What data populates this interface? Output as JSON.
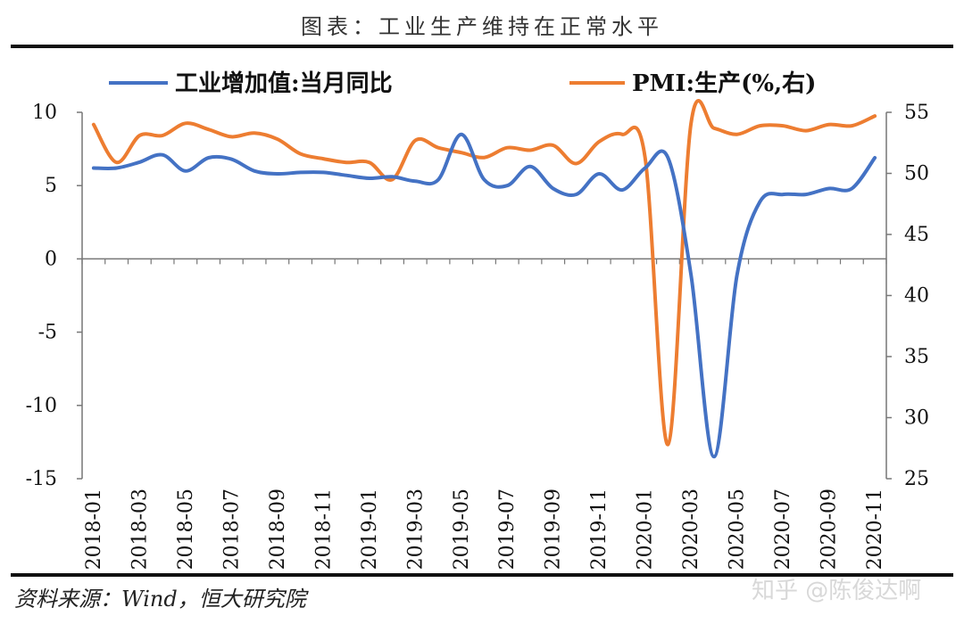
{
  "title": "图表：工业生产维持在正常水平",
  "source": "资料来源：Wind，恒大研究院",
  "watermark": "知乎 @陈俊达啊",
  "colors": {
    "series1": "#4472C4",
    "series2": "#ED7D31",
    "axis": "#777777",
    "rule": "#111111"
  },
  "chart_data": {
    "type": "line",
    "x": [
      "2018-01",
      "2018-02",
      "2018-03",
      "2018-04",
      "2018-05",
      "2018-06",
      "2018-07",
      "2018-08",
      "2018-09",
      "2018-10",
      "2018-11",
      "2018-12",
      "2019-01",
      "2019-02",
      "2019-03",
      "2019-04",
      "2019-05",
      "2019-06",
      "2019-07",
      "2019-08",
      "2019-09",
      "2019-10",
      "2019-11",
      "2019-12",
      "2020-01",
      "2020-02",
      "2020-03",
      "2020-04",
      "2020-05",
      "2020-06",
      "2020-07",
      "2020-08",
      "2020-09",
      "2020-10",
      "2020-11"
    ],
    "x_tick_labels": [
      "2018-01",
      "2018-03",
      "2018-05",
      "2018-07",
      "2018-09",
      "2018-11",
      "2019-01",
      "2019-03",
      "2019-05",
      "2019-07",
      "2019-09",
      "2019-11",
      "2020-01",
      "2020-03",
      "2020-05",
      "2020-07",
      "2020-09",
      "2020-11"
    ],
    "y_left": {
      "range": [
        -15,
        10
      ],
      "ticks": [
        "10",
        "5",
        "0",
        "-5",
        "-10",
        "-15"
      ]
    },
    "y_right": {
      "range": [
        25,
        55
      ],
      "ticks": [
        "55",
        "50",
        "45",
        "40",
        "35",
        "30",
        "25"
      ]
    },
    "series": [
      {
        "name": "工业增加值:当月同比",
        "axis": "left",
        "values": [
          6.2,
          6.2,
          6.6,
          7.1,
          6.0,
          6.9,
          6.8,
          6.0,
          5.8,
          5.9,
          5.9,
          5.7,
          5.5,
          5.6,
          5.3,
          5.4,
          8.5,
          5.4,
          5.0,
          6.3,
          4.8,
          4.4,
          5.8,
          4.7,
          6.2,
          6.9,
          -1.1,
          -13.5,
          -1.1,
          3.9,
          4.4,
          4.4,
          4.8,
          4.8,
          6.9
        ]
      },
      {
        "name": "PMI:生产(%,右)",
        "axis": "right",
        "values": [
          54.0,
          50.9,
          53.1,
          53.1,
          54.1,
          53.6,
          53.0,
          53.3,
          52.8,
          51.6,
          51.2,
          50.9,
          50.9,
          49.5,
          52.7,
          52.1,
          51.7,
          51.3,
          52.1,
          51.9,
          52.3,
          50.8,
          52.6,
          53.2,
          51.3,
          27.8,
          54.1,
          53.7,
          53.2,
          53.9,
          53.9,
          53.5,
          54.0,
          53.9,
          54.7
        ]
      }
    ]
  }
}
